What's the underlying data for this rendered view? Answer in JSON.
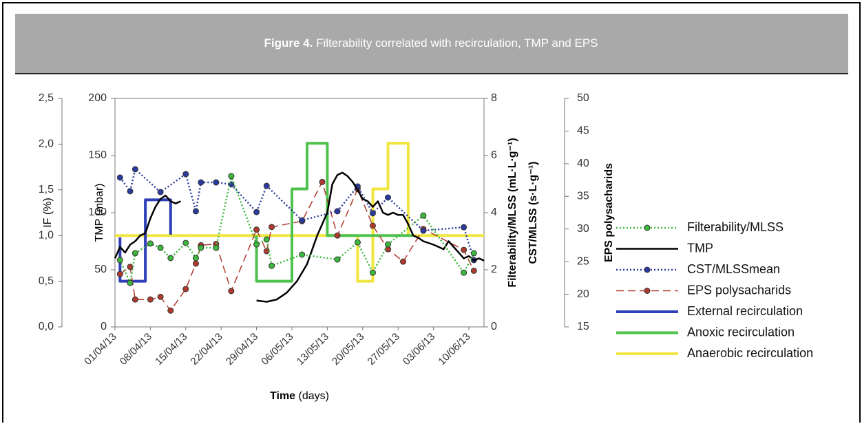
{
  "chart_data": {
    "type": "line",
    "title_label": "Figure 4.",
    "title": "Filterability correlated with recirculation, TMP and EPS",
    "xlabel_bold": "Time",
    "xlabel": "(days)",
    "xlim": [
      "01/04/13",
      "13/06/13"
    ],
    "xticks": [
      "01/04/13",
      "08/04/13",
      "15/04/13",
      "22/04/13",
      "29/04/13",
      "06/05/13",
      "13/05/13",
      "20/05/13",
      "27/05/13",
      "03/06/13",
      "10/06/13"
    ],
    "yaxes": [
      {
        "labels": [
          "IF (%)"
        ],
        "side": "left",
        "lim": [
          0,
          2.5
        ],
        "ticks": [
          {
            "value": 0,
            "label": "0,0"
          },
          {
            "value": 0.5,
            "label": "0,5"
          },
          {
            "value": 1,
            "label": "1,0"
          },
          {
            "value": 1.5,
            "label": "1,5"
          },
          {
            "value": 2,
            "label": "2,0"
          },
          {
            "value": 2.5,
            "label": "2,5"
          }
        ]
      },
      {
        "labels": [
          "TMP (mbar)"
        ],
        "side": "left",
        "lim": [
          0,
          200
        ],
        "ticks": [
          0,
          50,
          100,
          150,
          200
        ]
      },
      {
        "labels": [
          "Filterability/MLSS (mL·L·g⁻¹)",
          "CST/MLSS (s·L·g⁻¹)"
        ],
        "side": "right",
        "lim": [
          0,
          8
        ],
        "ticks": [
          0,
          2,
          4,
          6,
          8
        ]
      },
      {
        "labels": [
          "EPS polysacharids"
        ],
        "side": "right",
        "lim": [
          15,
          50
        ],
        "ticks": [
          15,
          20,
          25,
          30,
          35,
          40,
          45,
          50
        ]
      }
    ],
    "legend": "right",
    "series": [
      {
        "name": "Filterability/MLSS",
        "color": "#3cb83c",
        "axis": 2,
        "style": "dotted",
        "marker": true,
        "x": [
          "02/04/13",
          "04/04/13",
          "05/04/13",
          "08/04/13",
          "10/04/13",
          "12/04/13",
          "15/04/13",
          "17/04/13",
          "18/04/13",
          "21/04/13",
          "24/04/13",
          "29/04/13",
          "01/05/13",
          "02/05/13",
          "08/05/13",
          "15/05/13",
          "19/05/13",
          "22/05/13",
          "25/05/13",
          "01/06/13",
          "09/06/13",
          "11/06/13"
        ],
        "values": [
          2.34,
          1.54,
          2.58,
          2.92,
          2.77,
          2.41,
          2.94,
          2.41,
          2.77,
          2.77,
          5.28,
          2.89,
          3.06,
          2.14,
          2.53,
          2.36,
          2.96,
          1.9,
          2.89,
          3.9,
          1.9,
          2.58
        ]
      },
      {
        "name": "TMP",
        "color": "#000000",
        "axis": 1,
        "style": "solid",
        "marker": false,
        "x": [
          "01/04/13",
          "02/04/13",
          "03/04/13",
          "04/04/13",
          "05/04/13",
          "06/04/13",
          "07/04/13",
          "08/04/13",
          "09/04/13",
          "10/04/13",
          "11/04/13",
          "12/04/13",
          "13/04/13",
          "14/04/13",
          "20/04/13",
          "29/04/13",
          "01/05/13",
          "03/05/13",
          "05/05/13",
          "07/05/13",
          "09/05/13",
          "11/05/13",
          "12/05/13",
          "13/05/13",
          "14/05/13",
          "15/05/13",
          "16/05/13",
          "17/05/13",
          "18/05/13",
          "19/05/13",
          "20/05/13",
          "21/05/13",
          "22/05/13",
          "23/05/13",
          "24/05/13",
          "25/05/13",
          "26/05/13",
          "27/05/13",
          "28/05/13",
          "29/05/13",
          "30/05/13",
          "31/05/13",
          "01/06/13",
          "03/06/13",
          "05/06/13",
          "06/06/13",
          "07/06/13",
          "08/06/13",
          "09/06/13",
          "10/06/13",
          "11/06/13",
          "12/06/13",
          "13/06/13"
        ],
        "values": [
          60,
          70,
          65,
          72,
          75,
          80,
          82,
          95,
          105,
          112,
          115,
          110,
          108,
          110,
          null,
          23,
          22,
          24,
          30,
          40,
          55,
          80,
          90,
          100,
          125,
          133,
          135,
          132,
          127,
          120,
          112,
          110,
          105,
          110,
          100,
          98,
          100,
          98,
          98,
          90,
          80,
          78,
          75,
          72,
          68,
          75,
          70,
          65,
          60,
          62,
          58,
          60,
          58
        ]
      },
      {
        "name": "CST/MLSSmean",
        "color": "#2a3a9e",
        "axis": 2,
        "style": "dotted",
        "marker": true,
        "x": [
          "02/04/13",
          "04/04/13",
          "05/04/13",
          "10/04/13",
          "15/04/13",
          "17/04/13",
          "18/04/13",
          "21/04/13",
          "24/04/13",
          "29/04/13",
          "01/05/13",
          "08/05/13",
          "15/05/13",
          "19/05/13",
          "22/05/13",
          "25/05/13",
          "01/06/13",
          "09/06/13",
          "11/06/13"
        ],
        "values": [
          5.23,
          4.75,
          5.52,
          4.72,
          5.35,
          4.05,
          5.06,
          5.06,
          4.99,
          4.02,
          4.94,
          3.73,
          4.05,
          4.92,
          3.98,
          4.53,
          3.37,
          3.49,
          2.34
        ]
      },
      {
        "name": "EPS polysacharids",
        "color": "#b03a2e",
        "axis": 3,
        "style": "dashed",
        "marker": true,
        "x": [
          "02/04/13",
          "04/04/13",
          "05/04/13",
          "08/04/13",
          "10/04/13",
          "12/04/13",
          "15/04/13",
          "17/04/13",
          "18/04/13",
          "21/04/13",
          "24/04/13",
          "29/04/13",
          "01/05/13",
          "02/05/13",
          "08/05/13",
          "12/05/13",
          "15/05/13",
          "19/05/13",
          "22/05/13",
          "25/05/13",
          "28/05/13",
          "01/06/13",
          "09/06/13",
          "11/06/13"
        ],
        "values": [
          23.1,
          24.2,
          19.2,
          19.2,
          19.6,
          17.5,
          20.8,
          24.7,
          27.5,
          27.7,
          20.5,
          29.9,
          26.6,
          30.3,
          31.2,
          37.2,
          29.0,
          36.1,
          30.5,
          26.9,
          25.0,
          30.0,
          26.8,
          23.6
        ]
      },
      {
        "name": "External recirculation",
        "color": "#2e3fb8",
        "axis": 0,
        "style": "step",
        "marker": false,
        "x": [
          "02/04/13",
          "02/04/13",
          "07/04/13",
          "07/04/13",
          "12/04/13",
          "12/04/13"
        ],
        "values": [
          0.98,
          0.5,
          0.5,
          1.39,
          1.39,
          1.01
        ]
      },
      {
        "name": "Anoxic recirculation",
        "color": "#4ec24e",
        "axis": 0,
        "style": "step",
        "marker": false,
        "x": [
          "29/04/13",
          "29/04/13",
          "06/05/13",
          "06/05/13",
          "09/05/13",
          "09/05/13",
          "13/05/13",
          "13/05/13",
          "30/05/13"
        ],
        "values": [
          1.0,
          0.5,
          0.5,
          1.51,
          1.51,
          2.01,
          2.01,
          1.0,
          1.0
        ]
      },
      {
        "name": "Anaerobic recirculation",
        "color": "#f0e640",
        "axis": 0,
        "style": "step",
        "marker": false,
        "x": [
          "01/04/13",
          "19/05/13",
          "19/05/13",
          "22/05/13",
          "22/05/13",
          "25/05/13",
          "25/05/13",
          "29/05/13",
          "29/05/13",
          "13/06/13"
        ],
        "values": [
          1.0,
          1.0,
          0.5,
          0.5,
          1.51,
          1.51,
          2.01,
          2.01,
          1.0,
          1.0
        ]
      }
    ]
  }
}
